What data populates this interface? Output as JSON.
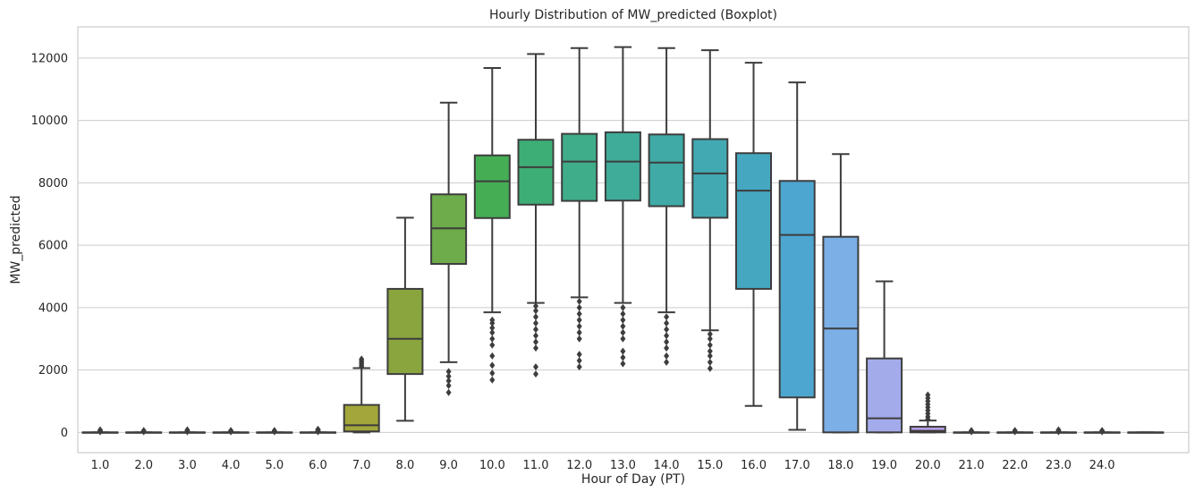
{
  "chart_data": {
    "type": "boxplot",
    "title": "Hourly Distribution of MW_predicted (Boxplot)",
    "xlabel": "Hour of Day (PT)",
    "ylabel": "MW_predicted",
    "ylim": [
      -650,
      13000
    ],
    "yticks": [
      0,
      2000,
      4000,
      6000,
      8000,
      10000,
      12000
    ],
    "grid": "horizontal",
    "categories": [
      "1.0",
      "2.0",
      "3.0",
      "4.0",
      "5.0",
      "6.0",
      "7.0",
      "8.0",
      "9.0",
      "10.0",
      "11.0",
      "12.0",
      "13.0",
      "14.0",
      "15.0",
      "16.0",
      "17.0",
      "18.0",
      "19.0",
      "20.0",
      "21.0",
      "22.0",
      "23.0",
      "24.0",
      ""
    ],
    "boxes": [
      {
        "whisker_low": 0,
        "q1": 0,
        "median": 0,
        "q3": 0,
        "whisker_high": 0,
        "fliers": [
          20,
          40,
          60,
          80
        ],
        "color": "#e9826b"
      },
      {
        "whisker_low": 0,
        "q1": 0,
        "median": 0,
        "q3": 0,
        "whisker_high": 0,
        "fliers": [
          20,
          40,
          60
        ],
        "color": "#e2885f"
      },
      {
        "whisker_low": 0,
        "q1": 0,
        "median": 0,
        "q3": 0,
        "whisker_high": 0,
        "fliers": [
          20,
          40,
          60,
          80
        ],
        "color": "#d99150"
      },
      {
        "whisker_low": 0,
        "q1": 0,
        "median": 0,
        "q3": 0,
        "whisker_high": 0,
        "fliers": [
          20,
          40,
          60
        ],
        "color": "#cc9a44"
      },
      {
        "whisker_low": 0,
        "q1": 0,
        "median": 0,
        "q3": 0,
        "whisker_high": 0,
        "fliers": [
          20,
          40,
          60
        ],
        "color": "#bfa03d"
      },
      {
        "whisker_low": 0,
        "q1": 0,
        "median": 0,
        "q3": 0,
        "whisker_high": 0,
        "fliers": [
          20,
          40,
          60,
          80,
          100
        ],
        "color": "#b1a43a"
      },
      {
        "whisker_low": 0,
        "q1": 30,
        "median": 230,
        "q3": 880,
        "whisker_high": 2060,
        "fliers": [
          2100,
          2150,
          2200,
          2250,
          2300,
          2350
        ],
        "color": "#a2a63b"
      },
      {
        "whisker_low": 370,
        "q1": 1870,
        "median": 3000,
        "q3": 4600,
        "whisker_high": 6880,
        "fliers": [],
        "color": "#8aa53e"
      },
      {
        "whisker_low": 2250,
        "q1": 5400,
        "median": 6540,
        "q3": 7630,
        "whisker_high": 10570,
        "fliers": [
          1280,
          1500,
          1650,
          1800,
          1950
        ],
        "color": "#6eab4a"
      },
      {
        "whisker_low": 3850,
        "q1": 6870,
        "median": 8050,
        "q3": 8880,
        "whisker_high": 11680,
        "fliers": [
          1680,
          1900,
          2150,
          2450,
          2800,
          3000,
          3200,
          3350,
          3500,
          3600
        ],
        "color": "#45ae55"
      },
      {
        "whisker_low": 4150,
        "q1": 7300,
        "median": 8500,
        "q3": 9380,
        "whisker_high": 12130,
        "fliers": [
          1870,
          2100,
          2700,
          2900,
          3100,
          3300,
          3500,
          3700,
          3900,
          4050
        ],
        "color": "#3eae77"
      },
      {
        "whisker_low": 4330,
        "q1": 7420,
        "median": 8680,
        "q3": 9570,
        "whisker_high": 12320,
        "fliers": [
          2100,
          2300,
          2500,
          3000,
          3200,
          3400,
          3600,
          3800,
          4000,
          4200
        ],
        "color": "#3fad8a"
      },
      {
        "whisker_low": 4150,
        "q1": 7430,
        "median": 8680,
        "q3": 9620,
        "whisker_high": 12350,
        "fliers": [
          2200,
          2400,
          2600,
          3000,
          3200,
          3400,
          3600,
          3800,
          4000
        ],
        "color": "#3fab99"
      },
      {
        "whisker_low": 3850,
        "q1": 7250,
        "median": 8650,
        "q3": 9550,
        "whisker_high": 12320,
        "fliers": [
          2250,
          2450,
          2700,
          2900,
          3100,
          3300,
          3500,
          3700
        ],
        "color": "#3faaa6"
      },
      {
        "whisker_low": 3270,
        "q1": 6880,
        "median": 8300,
        "q3": 9400,
        "whisker_high": 12250,
        "fliers": [
          2050,
          2250,
          2450,
          2600,
          2800,
          3000,
          3150
        ],
        "color": "#42a9b3"
      },
      {
        "whisker_low": 850,
        "q1": 4600,
        "median": 7750,
        "q3": 8950,
        "whisker_high": 11850,
        "fliers": [],
        "color": "#45a8c0"
      },
      {
        "whisker_low": 80,
        "q1": 1120,
        "median": 6330,
        "q3": 8060,
        "whisker_high": 11220,
        "fliers": [],
        "color": "#4da6cf"
      },
      {
        "whisker_low": 0,
        "q1": 0,
        "median": 3330,
        "q3": 6270,
        "whisker_high": 8920,
        "fliers": [],
        "color": "#7bafe6"
      },
      {
        "whisker_low": 0,
        "q1": 0,
        "median": 450,
        "q3": 2370,
        "whisker_high": 4840,
        "fliers": [],
        "color": "#a4abeb"
      },
      {
        "whisker_low": 0,
        "q1": 0,
        "median": 50,
        "q3": 180,
        "whisker_high": 380,
        "fliers": [
          420,
          500,
          600,
          700,
          800,
          900,
          1000,
          1100,
          1200
        ],
        "color": "#b7a1e9"
      },
      {
        "whisker_low": 0,
        "q1": 0,
        "median": 0,
        "q3": 0,
        "whisker_high": 0,
        "fliers": [
          20,
          40,
          60
        ],
        "color": "#c897e5"
      },
      {
        "whisker_low": 0,
        "q1": 0,
        "median": 0,
        "q3": 0,
        "whisker_high": 0,
        "fliers": [
          20,
          40,
          60
        ],
        "color": "#d68fdd"
      },
      {
        "whisker_low": 0,
        "q1": 0,
        "median": 0,
        "q3": 0,
        "whisker_high": 0,
        "fliers": [
          20,
          40,
          60,
          80
        ],
        "color": "#e18bd2"
      },
      {
        "whisker_low": 0,
        "q1": 0,
        "median": 0,
        "q3": 0,
        "whisker_high": 0,
        "fliers": [
          20,
          40,
          60
        ],
        "color": "#e889c4"
      },
      {
        "whisker_low": 0,
        "q1": 0,
        "median": 0,
        "q3": 0,
        "whisker_high": 0,
        "fliers": [],
        "color": "#ed87b4"
      }
    ]
  }
}
